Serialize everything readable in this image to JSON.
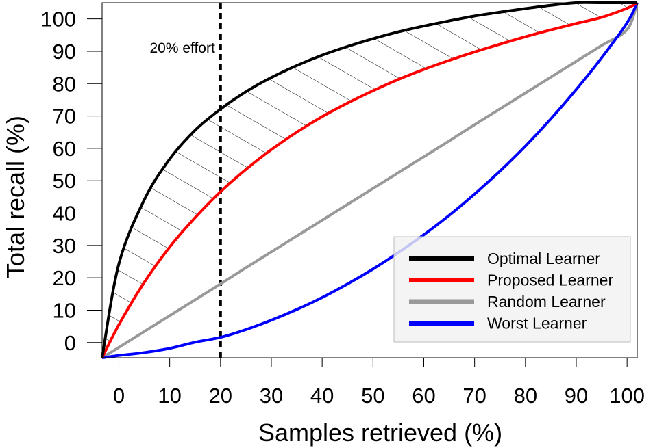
{
  "chart_data": {
    "type": "line",
    "xlabel": "Samples retrieved (%)",
    "ylabel": "Total recall (%)",
    "xlim": [
      -3.3,
      102
    ],
    "ylim": [
      -4.7,
      105
    ],
    "xticks": [
      0,
      10,
      20,
      30,
      40,
      50,
      60,
      70,
      80,
      90,
      100
    ],
    "yticks": [
      0,
      10,
      20,
      30,
      40,
      50,
      60,
      70,
      80,
      90,
      100
    ],
    "x": [
      -3.3,
      0,
      5,
      10,
      15,
      20,
      25,
      30,
      35,
      40,
      45,
      50,
      55,
      60,
      65,
      70,
      75,
      80,
      85,
      90,
      95,
      100,
      102
    ],
    "series": [
      {
        "name": "Optimal Learner",
        "color": "#000000",
        "values": [
          -4.7,
          24.3,
          44.1,
          56.7,
          65.6,
          72.1,
          77.5,
          81.9,
          85.6,
          88.8,
          91.5,
          93.9,
          96.0,
          97.8,
          99.4,
          100.9,
          102.1,
          103.2,
          104.2,
          105.0,
          105.0,
          105.0,
          105.0
        ]
      },
      {
        "name": "Proposed Learner",
        "color": "#ff0000",
        "values": [
          -4.7,
          5.5,
          18.6,
          29.5,
          38.6,
          46.6,
          53.5,
          59.6,
          65.0,
          69.8,
          74.0,
          77.8,
          81.3,
          84.4,
          87.2,
          89.8,
          92.2,
          94.5,
          96.6,
          98.6,
          100.5,
          103.3,
          105.0
        ]
      },
      {
        "name": "Random Learner",
        "color": "#999999",
        "values": [
          -4.7,
          -1.5,
          3.4,
          8.3,
          13.2,
          18.1,
          23.1,
          28.0,
          32.9,
          37.8,
          42.7,
          47.6,
          52.5,
          57.4,
          62.3,
          67.3,
          72.2,
          77.1,
          82.0,
          86.9,
          91.8,
          96.7,
          105.0
        ]
      },
      {
        "name": "Worst Learner",
        "color": "#0000ff",
        "values": [
          -4.7,
          -4.0,
          -3.1,
          -1.8,
          0.1,
          1.6,
          4.0,
          6.9,
          10.2,
          13.9,
          18.1,
          22.7,
          27.8,
          33.3,
          39.3,
          45.9,
          53.0,
          60.7,
          69.1,
          78.2,
          88.0,
          98.8,
          105.0
        ]
      }
    ],
    "shaded_region": {
      "between": [
        "Optimal Learner",
        "Proposed Learner"
      ],
      "pattern": "hatch"
    },
    "annotations": [
      {
        "text": "20% effort",
        "x": 20,
        "style": "dashed vertical line"
      }
    ],
    "legend_position": "bottom-right"
  }
}
